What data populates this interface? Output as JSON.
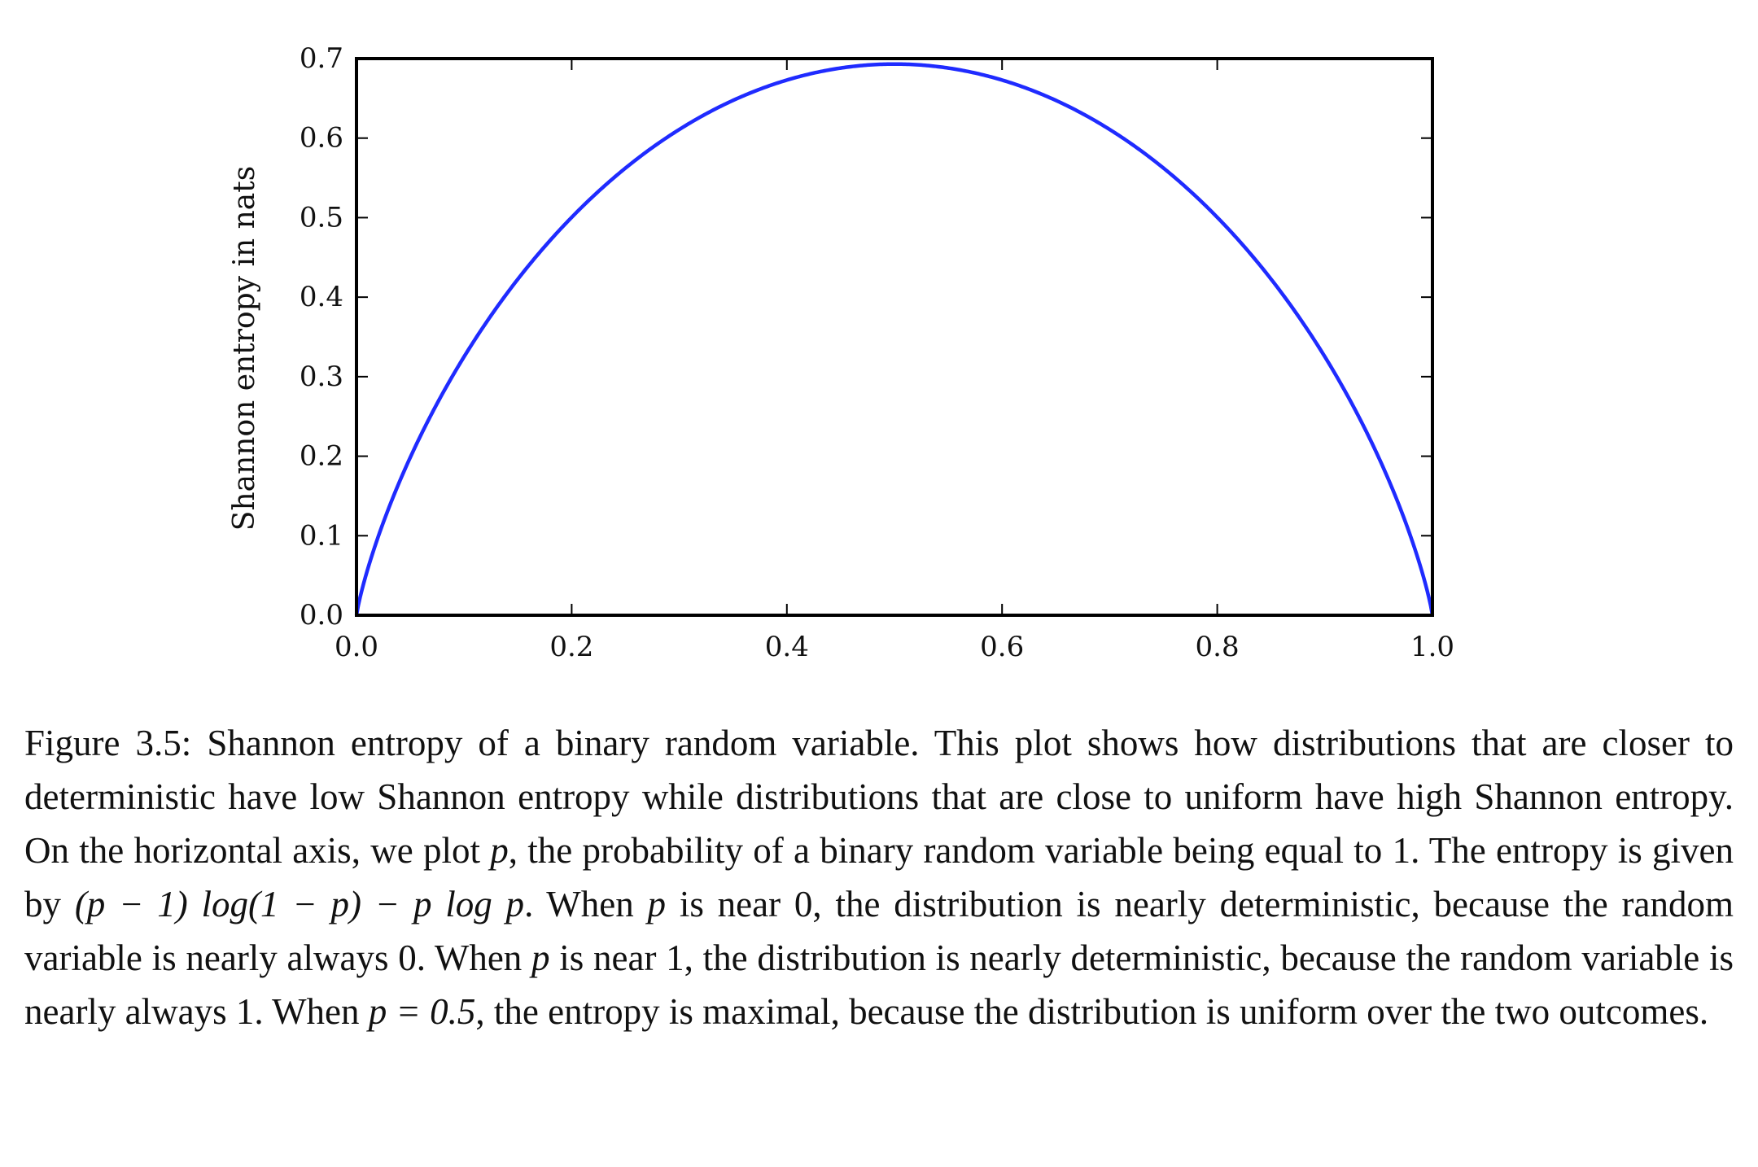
{
  "chart_data": {
    "type": "line",
    "title": "",
    "xlabel": "",
    "ylabel": "Shannon entropy in nats",
    "xlim": [
      0.0,
      1.0
    ],
    "ylim": [
      0.0,
      0.7
    ],
    "x_ticks": [
      0.0,
      0.2,
      0.4,
      0.6,
      0.8,
      1.0
    ],
    "x_tick_labels": [
      "0.0",
      "0.2",
      "0.4",
      "0.6",
      "0.8",
      "1.0"
    ],
    "y_ticks": [
      0.0,
      0.1,
      0.2,
      0.3,
      0.4,
      0.5,
      0.6,
      0.7
    ],
    "y_tick_labels": [
      "0.0",
      "0.1",
      "0.2",
      "0.3",
      "0.4",
      "0.5",
      "0.6",
      "0.7"
    ],
    "grid": false,
    "series": [
      {
        "name": "Shannon entropy",
        "color": "#1f2bff",
        "x": [
          0.0,
          0.01,
          0.02,
          0.05,
          0.1,
          0.15,
          0.2,
          0.25,
          0.3,
          0.35,
          0.4,
          0.45,
          0.5,
          0.55,
          0.6,
          0.65,
          0.7,
          0.75,
          0.8,
          0.85,
          0.9,
          0.95,
          0.98,
          0.99,
          1.0
        ],
        "values": [
          0.0,
          0.056,
          0.098,
          0.199,
          0.325,
          0.423,
          0.5,
          0.562,
          0.611,
          0.647,
          0.673,
          0.688,
          0.693,
          0.688,
          0.673,
          0.647,
          0.611,
          0.562,
          0.5,
          0.423,
          0.325,
          0.199,
          0.098,
          0.056,
          0.0
        ]
      }
    ]
  },
  "caption": {
    "label": "Figure 3.5:",
    "s1": " Shannon entropy of a binary random variable. This plot shows how distributions that are closer to deterministic have low Shannon entropy while distributions that are close to uniform have high Shannon entropy. On the horizontal axis, we plot ",
    "p1": "p",
    "s2": ", the probability of a binary random variable being equal to 1. The entropy is given by ",
    "formula": "(p − 1) log(1 − p) − p log p",
    "s3": ". When ",
    "p2": "p",
    "s4": " is near 0, the distribution is nearly deterministic, because the random variable is nearly always 0. When ",
    "p3": "p",
    "s5": " is near 1, the distribution is nearly deterministic, because the random variable is nearly always 1. When ",
    "eq": "p = 0.5",
    "s6": ", the entropy is maximal, because the distribution is uniform over the two outcomes."
  }
}
